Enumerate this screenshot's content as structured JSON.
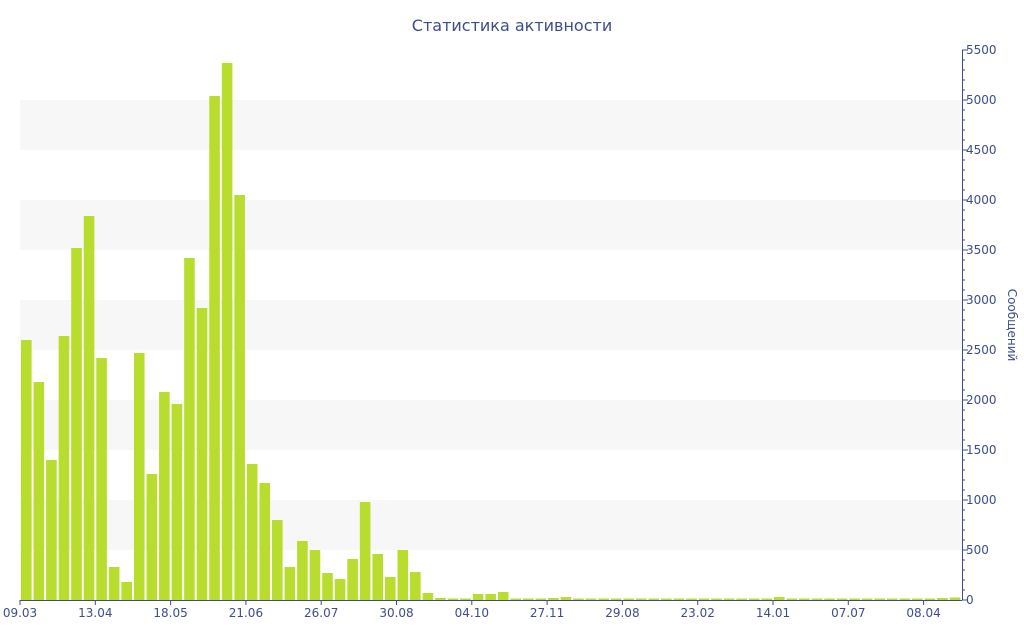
{
  "chart_data": {
    "type": "bar",
    "title": "Статистика активности",
    "ylabel": "Сообщений",
    "xlabel": "",
    "ylim": [
      0,
      5500
    ],
    "y_ticks": [
      0,
      500,
      1000,
      1500,
      2000,
      2500,
      3000,
      3500,
      4000,
      4500,
      5000,
      5500
    ],
    "y_axis_side": "right",
    "grid": "alternating horizontal bands",
    "legend": "none",
    "x_tick_labels": [
      "09.03",
      "13.04",
      "18.05",
      "21.06",
      "26.07",
      "30.08",
      "04.10",
      "27.11",
      "29.08",
      "23.02",
      "14.01",
      "07.07",
      "08.04"
    ],
    "x_tick_bar_index": [
      0,
      6,
      12,
      18,
      24,
      30,
      36,
      42,
      48,
      54,
      60,
      66,
      72
    ],
    "values": [
      2600,
      2180,
      1400,
      2640,
      3520,
      3840,
      2420,
      330,
      180,
      2470,
      1260,
      2080,
      1960,
      3420,
      2920,
      5040,
      5370,
      4050,
      1360,
      1170,
      800,
      330,
      590,
      500,
      270,
      210,
      410,
      980,
      460,
      230,
      500,
      280,
      70,
      20,
      15,
      15,
      60,
      60,
      80,
      15,
      15,
      15,
      20,
      30,
      15,
      15,
      15,
      15,
      15,
      15,
      15,
      15,
      15,
      15,
      15,
      15,
      15,
      15,
      15,
      15,
      30,
      15,
      15,
      15,
      15,
      15,
      15,
      15,
      15,
      15,
      15,
      15,
      15,
      20,
      25
    ],
    "colors": {
      "bar": "#b8dd2e",
      "band": "#f7f7f7",
      "text": "#3d4d8c",
      "axis": "#3d4d8c"
    }
  }
}
